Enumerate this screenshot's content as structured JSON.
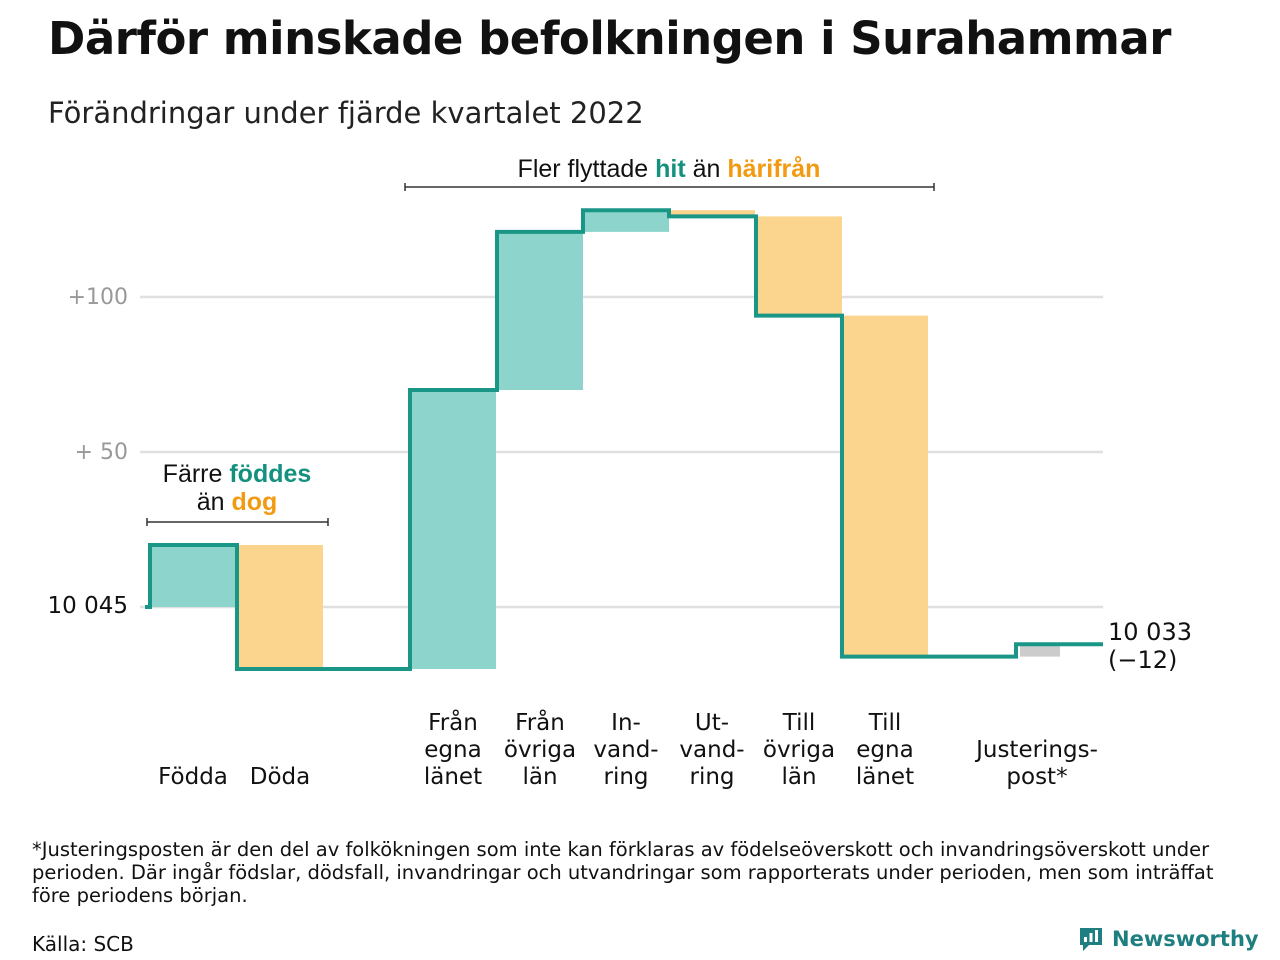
{
  "title": "Därför minskade befolkningen i Surahammar",
  "subtitle": "Förändringar under fjärde kvartalet 2022",
  "colors": {
    "inflow": "#8dd5cc",
    "outflow": "#fbd48d",
    "adjustment": "#cccccc",
    "line": "#1a9686",
    "teal_text": "#14907f",
    "orange_text": "#f29a12",
    "grid": "#e0e0e0",
    "tick": "#999999"
  },
  "chart_data": {
    "type": "waterfall",
    "start_value": 10045,
    "end_value": 10033,
    "end_label": "10 033",
    "net_change_label": "(−12)",
    "start_label": "10 045",
    "y_ticks": [
      {
        "offset": 100,
        "label": "+100"
      },
      {
        "offset": 50,
        "label": "+ 50"
      },
      {
        "offset": 0,
        "label": ""
      }
    ],
    "ylim": [
      -20,
      130
    ],
    "steps": [
      {
        "category": "Födda",
        "lines": [
          "Födda"
        ],
        "change": 20,
        "kind": "inflow"
      },
      {
        "category": "Döda",
        "lines": [
          "Döda"
        ],
        "change": -40,
        "kind": "outflow"
      },
      {
        "category": "Från egna länet",
        "lines": [
          "Från",
          "egna",
          "länet"
        ],
        "change": 90,
        "kind": "inflow"
      },
      {
        "category": "Från övriga län",
        "lines": [
          "Från",
          "övriga",
          "län"
        ],
        "change": 51,
        "kind": "inflow"
      },
      {
        "category": "Invandring",
        "lines": [
          "In-",
          "vand-",
          "ring"
        ],
        "change": 7,
        "kind": "inflow"
      },
      {
        "category": "Utvandring",
        "lines": [
          "Ut-",
          "vand-",
          "ring"
        ],
        "change": -2,
        "kind": "outflow"
      },
      {
        "category": "Till övriga län",
        "lines": [
          "Till",
          "övriga",
          "län"
        ],
        "change": -32,
        "kind": "outflow"
      },
      {
        "category": "Till egna länet",
        "lines": [
          "Till",
          "egna",
          "länet"
        ],
        "change": -110,
        "kind": "outflow"
      },
      {
        "category": "Justeringspost*",
        "lines": [
          "Justerings-",
          "post*"
        ],
        "change": 4,
        "kind": "adjustment"
      }
    ],
    "annotations": [
      {
        "lines": [
          [
            "Färre ",
            "föddes",
            ""
          ],
          [
            "än ",
            "dog",
            ""
          ]
        ]
      },
      {
        "lines": [
          [
            "Fler flyttade ",
            "hit",
            " än ",
            "härifrån"
          ]
        ]
      }
    ]
  },
  "footnote": "*Justeringsposten är den del av folkökningen som inte kan förklaras av födelseöverskott och invandringsöverskott under perioden. Där ingår födslar, dödsfall, invandringar och utvandringar som rapporterats under perioden, men som inträffat före periodens början.",
  "source": "Källa: SCB",
  "logo": {
    "text": "Newsworthy",
    "icon": "newsworthy-logo-icon"
  }
}
